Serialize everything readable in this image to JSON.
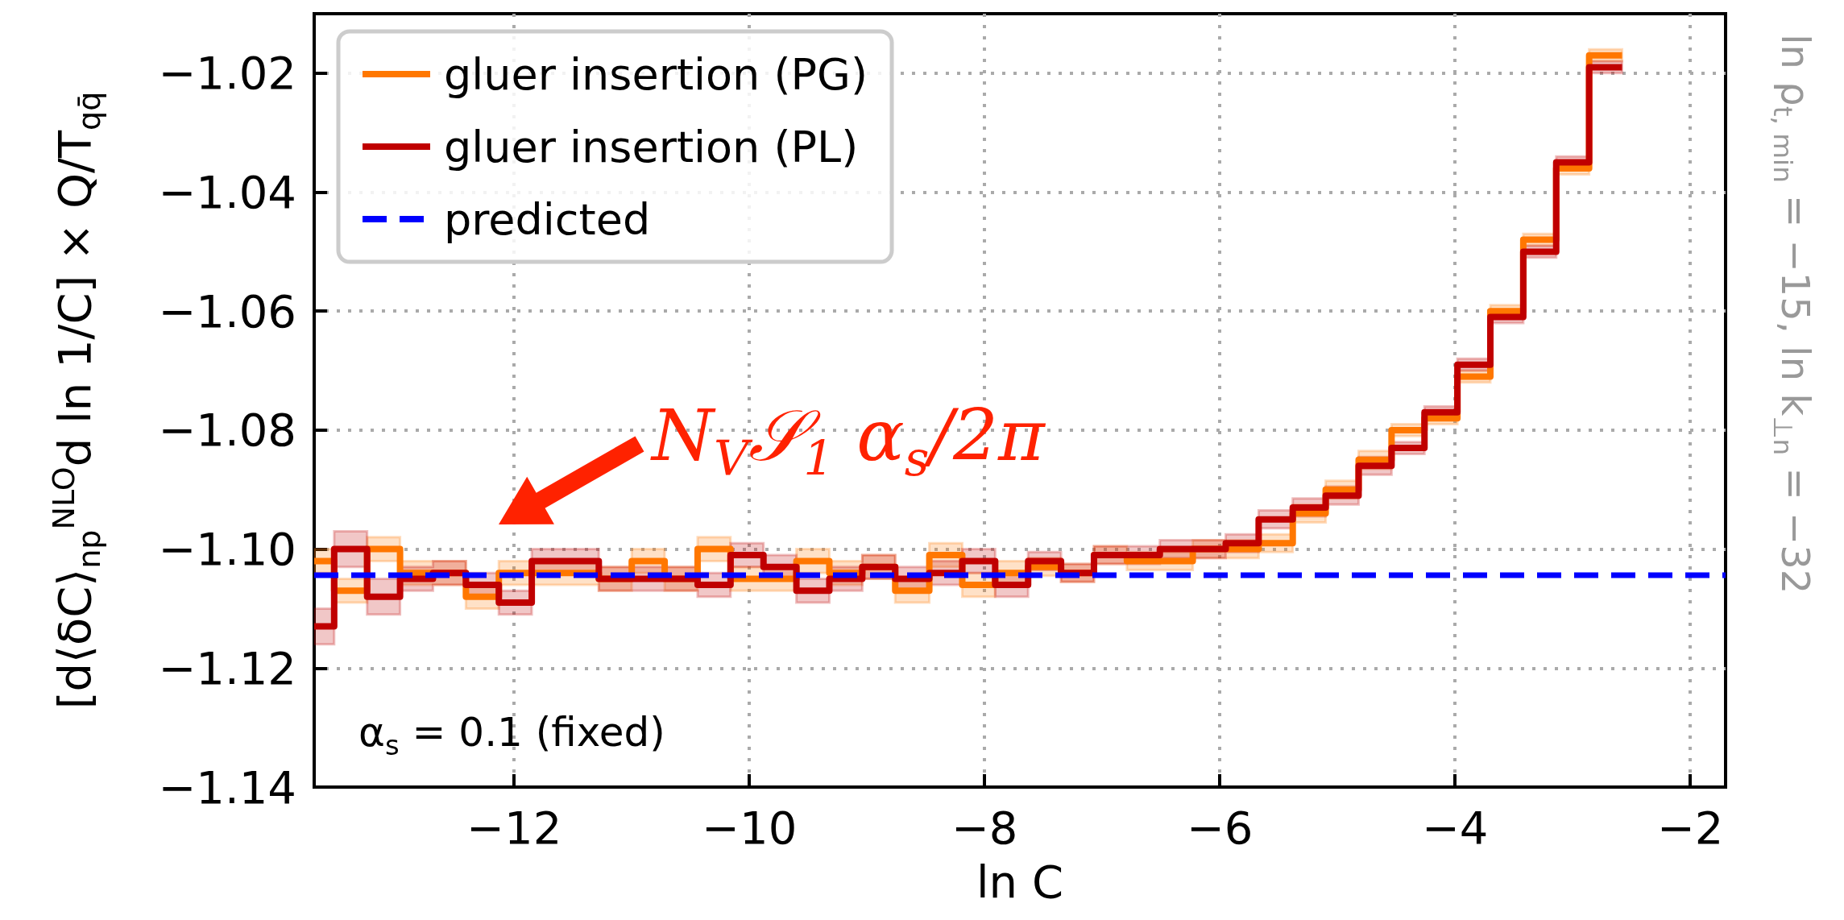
{
  "chart_data": {
    "type": "step",
    "xlabel": "ln C",
    "ylabel": "[d⟨δC⟩$_{np}$$^{NLO}$d ln 1/C] × Q/T$_{qq̄}$",
    "x": [
      -13.7,
      -13.53,
      -13.25,
      -12.97,
      -12.69,
      -12.41,
      -12.13,
      -11.85,
      -11.56,
      -11.28,
      -11.0,
      -10.72,
      -10.44,
      -10.16,
      -9.88,
      -9.6,
      -9.32,
      -9.04,
      -8.76,
      -8.47,
      -8.19,
      -7.91,
      -7.63,
      -7.35,
      -7.07,
      -6.79,
      -6.51,
      -6.23,
      -5.95,
      -5.67,
      -5.38,
      -5.1,
      -4.82,
      -4.54,
      -4.26,
      -3.98,
      -3.7,
      -3.42,
      -3.14,
      -2.86,
      -2.58
    ],
    "series": [
      {
        "name": "gluer insertion (PG)",
        "color": "#ff7700",
        "values": [
          -1.102,
          -1.107,
          -1.1,
          -1.104,
          -1.104,
          -1.108,
          -1.104,
          -1.104,
          -1.104,
          -1.105,
          -1.102,
          -1.105,
          -1.1,
          -1.105,
          -1.105,
          -1.102,
          -1.104,
          -1.103,
          -1.107,
          -1.101,
          -1.106,
          -1.104,
          -1.103,
          -1.104,
          -1.101,
          -1.102,
          -1.102,
          -1.1,
          -1.1,
          -1.099,
          -1.094,
          -1.09,
          -1.085,
          -1.08,
          -1.078,
          -1.071,
          -1.06,
          -1.048,
          -1.036,
          -1.017,
          -1.017
        ],
        "lower": [
          -1.104,
          -1.109,
          -1.102,
          -1.106,
          -1.106,
          -1.11,
          -1.106,
          -1.106,
          -1.106,
          -1.107,
          -1.104,
          -1.107,
          -1.102,
          -1.107,
          -1.107,
          -1.104,
          -1.106,
          -1.105,
          -1.109,
          -1.103,
          -1.108,
          -1.106,
          -1.1045,
          -1.1055,
          -1.1025,
          -1.1035,
          -1.1035,
          -1.1015,
          -1.1015,
          -1.1005,
          -1.0955,
          -1.0915,
          -1.0865,
          -1.081,
          -1.079,
          -1.072,
          -1.061,
          -1.049,
          -1.037,
          -1.018,
          -1.018
        ],
        "upper": [
          -1.1,
          -1.105,
          -1.098,
          -1.102,
          -1.102,
          -1.106,
          -1.102,
          -1.102,
          -1.102,
          -1.103,
          -1.1,
          -1.103,
          -1.098,
          -1.103,
          -1.103,
          -1.1,
          -1.102,
          -1.101,
          -1.105,
          -1.099,
          -1.104,
          -1.102,
          -1.1015,
          -1.1025,
          -1.0995,
          -1.1005,
          -1.1005,
          -1.0985,
          -1.0985,
          -1.0975,
          -1.0925,
          -1.0885,
          -1.0835,
          -1.079,
          -1.077,
          -1.07,
          -1.059,
          -1.047,
          -1.035,
          -1.016,
          -1.016
        ]
      },
      {
        "name": "gluer insertion (PL)",
        "color": "#c00000",
        "values": [
          -1.113,
          -1.1,
          -1.108,
          -1.105,
          -1.104,
          -1.106,
          -1.109,
          -1.102,
          -1.102,
          -1.105,
          -1.105,
          -1.105,
          -1.106,
          -1.101,
          -1.103,
          -1.107,
          -1.105,
          -1.103,
          -1.105,
          -1.104,
          -1.102,
          -1.106,
          -1.102,
          -1.104,
          -1.101,
          -1.101,
          -1.1,
          -1.1,
          -1.099,
          -1.095,
          -1.093,
          -1.091,
          -1.086,
          -1.083,
          -1.077,
          -1.069,
          -1.061,
          -1.05,
          -1.035,
          -1.019,
          -1.019
        ],
        "lower": [
          -1.116,
          -1.103,
          -1.111,
          -1.107,
          -1.106,
          -1.108,
          -1.111,
          -1.104,
          -1.104,
          -1.107,
          -1.107,
          -1.107,
          -1.108,
          -1.103,
          -1.105,
          -1.109,
          -1.107,
          -1.105,
          -1.107,
          -1.106,
          -1.104,
          -1.108,
          -1.1035,
          -1.1055,
          -1.1025,
          -1.1025,
          -1.1015,
          -1.1015,
          -1.1005,
          -1.0965,
          -1.0945,
          -1.0925,
          -1.0875,
          -1.084,
          -1.078,
          -1.07,
          -1.062,
          -1.051,
          -1.036,
          -1.02,
          -1.02
        ],
        "upper": [
          -1.11,
          -1.097,
          -1.105,
          -1.103,
          -1.102,
          -1.104,
          -1.107,
          -1.1,
          -1.1,
          -1.103,
          -1.103,
          -1.103,
          -1.104,
          -1.099,
          -1.101,
          -1.105,
          -1.103,
          -1.101,
          -1.103,
          -1.102,
          -1.1,
          -1.104,
          -1.1005,
          -1.1025,
          -1.0995,
          -1.0995,
          -1.0985,
          -1.0985,
          -1.0975,
          -1.0935,
          -1.0915,
          -1.0895,
          -1.0845,
          -1.082,
          -1.076,
          -1.068,
          -1.06,
          -1.049,
          -1.034,
          -1.018,
          -1.018
        ]
      },
      {
        "name": "predicted",
        "type": "line",
        "color": "#0000ff",
        "line_style": "dashed",
        "x": [
          -13.7,
          -1.7
        ],
        "values": [
          -1.1044,
          -1.1044
        ]
      }
    ],
    "xlim": [
      -13.7,
      -1.7
    ],
    "xticks": [
      {
        "value": -12,
        "label": "−12"
      },
      {
        "value": -10,
        "label": "−10"
      },
      {
        "value": -8,
        "label": "−8"
      },
      {
        "value": -6,
        "label": "−6"
      },
      {
        "value": -4,
        "label": "−4"
      },
      {
        "value": -2,
        "label": "−2"
      }
    ],
    "ylim": [
      -1.14,
      -1.01
    ],
    "yticks": [
      {
        "value": -1.14,
        "label": "−1.14"
      },
      {
        "value": -1.12,
        "label": "−1.12"
      },
      {
        "value": -1.1,
        "label": "−1.10"
      },
      {
        "value": -1.08,
        "label": "−1.08"
      },
      {
        "value": -1.06,
        "label": "−1.06"
      },
      {
        "value": -1.04,
        "label": "−1.04"
      },
      {
        "value": -1.02,
        "label": "−1.02"
      }
    ],
    "grid": true,
    "legend": "top left",
    "marker": "none",
    "annotations": [
      "α$_{s}$ = 0.1 (fixed)",
      "N$_{V}$𝒮$_{1}$ α$_{s}$/2π",
      "ln ρ$_{t, min}$ = −15, ln k$_{⊥n}$ = −32"
    ]
  }
}
